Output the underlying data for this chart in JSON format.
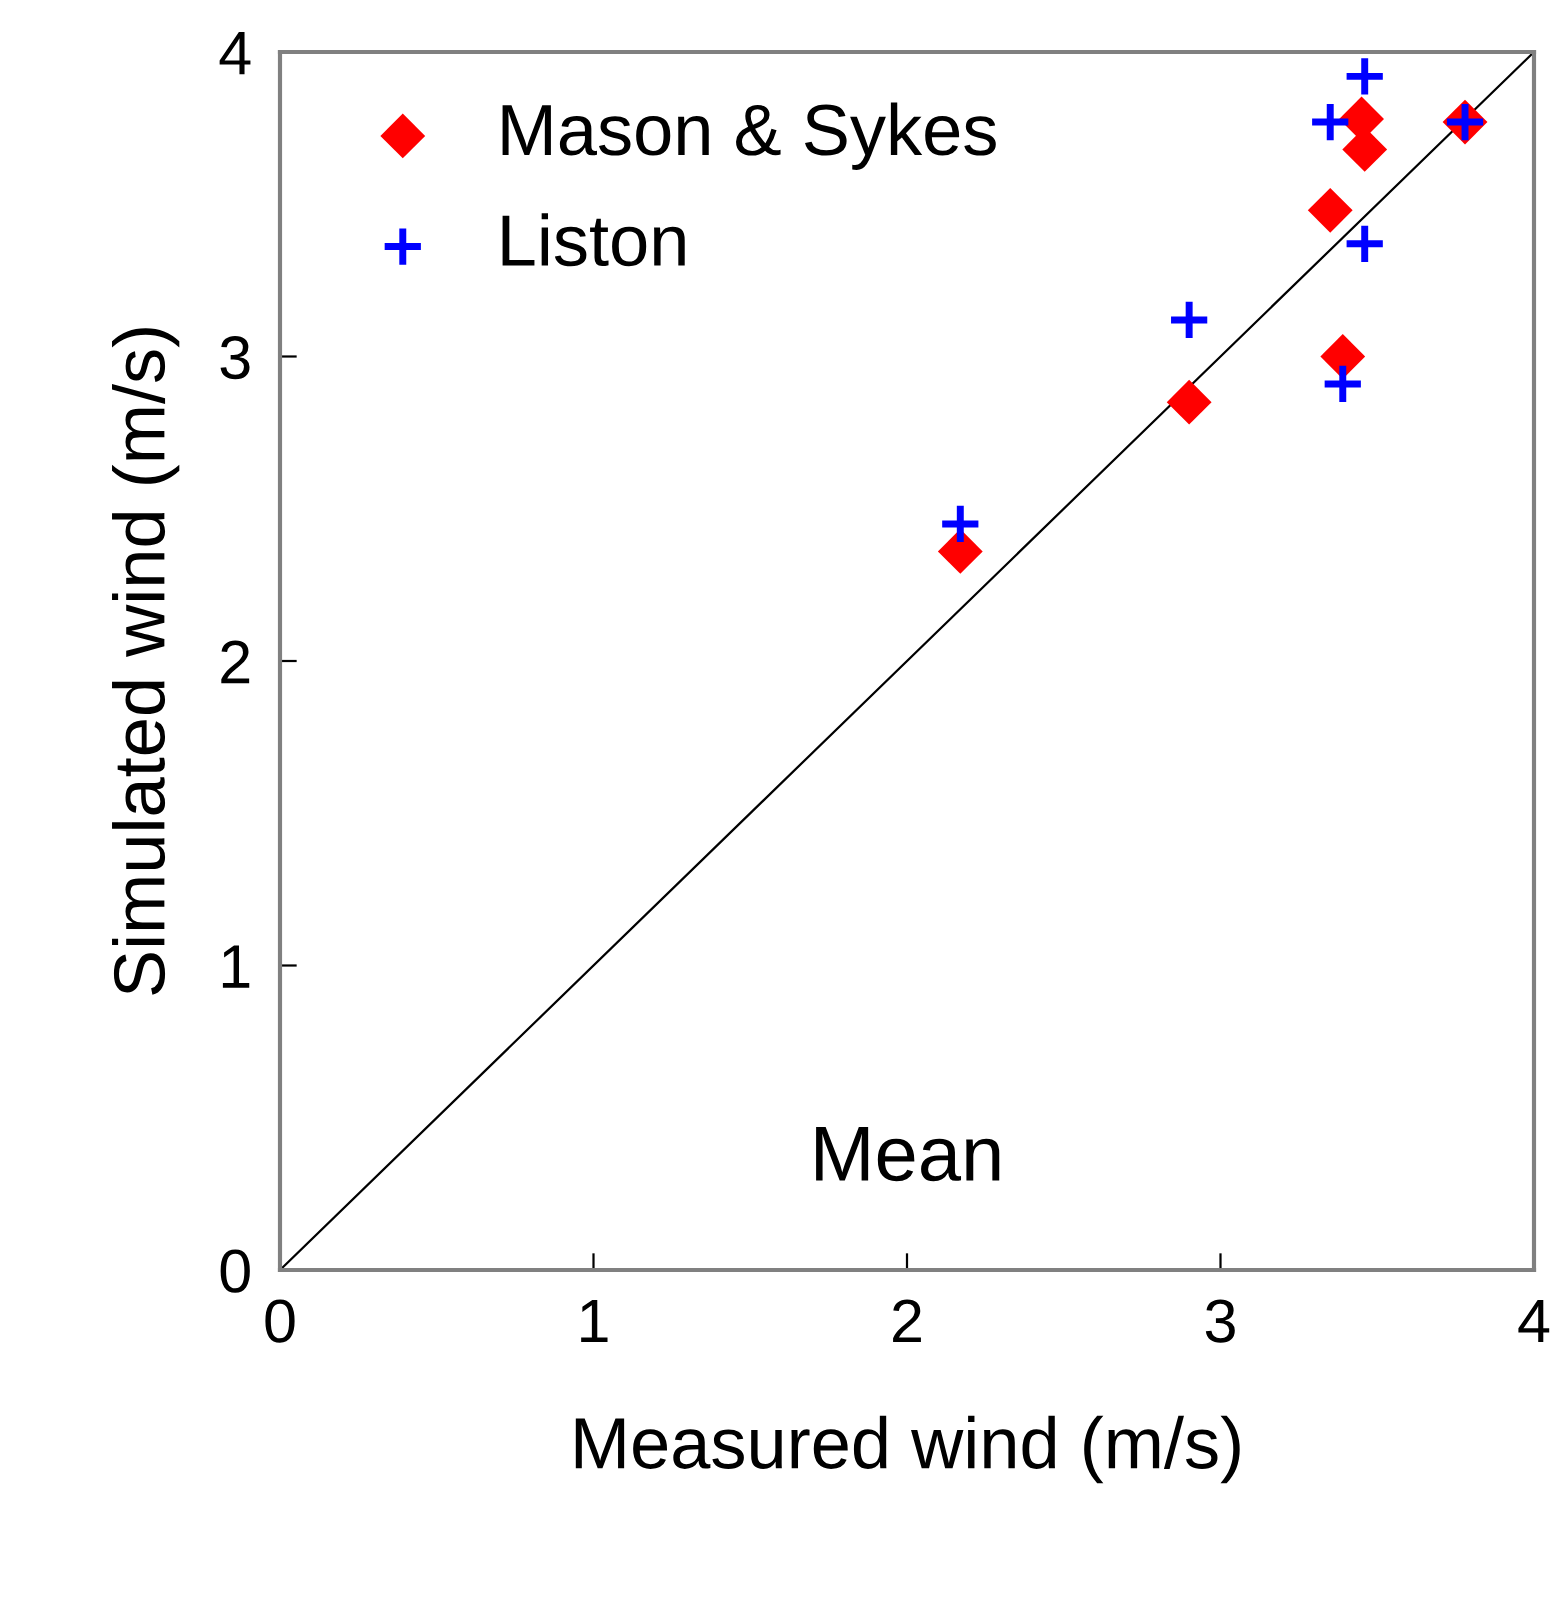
{
  "chart_data": {
    "type": "scatter",
    "xlabel": "Measured wind (m/s)",
    "ylabel": "Simulated wind (m/s)",
    "xlim": [
      0,
      4
    ],
    "ylim": [
      0,
      4
    ],
    "xticks": [
      0,
      1,
      2,
      3,
      4
    ],
    "yticks": [
      0,
      1,
      2,
      3,
      4
    ],
    "grid": false,
    "legend": "top left",
    "annotations": [
      "Mean"
    ],
    "series": [
      {
        "name": "Mason & Sykes",
        "color": "#ff0000",
        "marker": "diamond",
        "x": [
          2.17,
          2.9,
          3.35,
          3.39,
          3.45,
          3.46,
          3.78
        ],
        "values": [
          2.36,
          2.85,
          3.48,
          3.0,
          3.78,
          3.68,
          3.77
        ]
      },
      {
        "name": "Liston",
        "color": "#0000ff",
        "marker": "cross",
        "x": [
          2.17,
          2.9,
          3.35,
          3.46,
          3.46,
          3.39,
          3.78
        ],
        "values": [
          2.45,
          3.12,
          3.77,
          3.92,
          3.37,
          2.91,
          3.77
        ]
      },
      {
        "type": "line",
        "color": "#000000",
        "marker": "none",
        "line_style": "solid",
        "x": [
          0,
          4
        ],
        "values": [
          0,
          4
        ]
      }
    ]
  }
}
